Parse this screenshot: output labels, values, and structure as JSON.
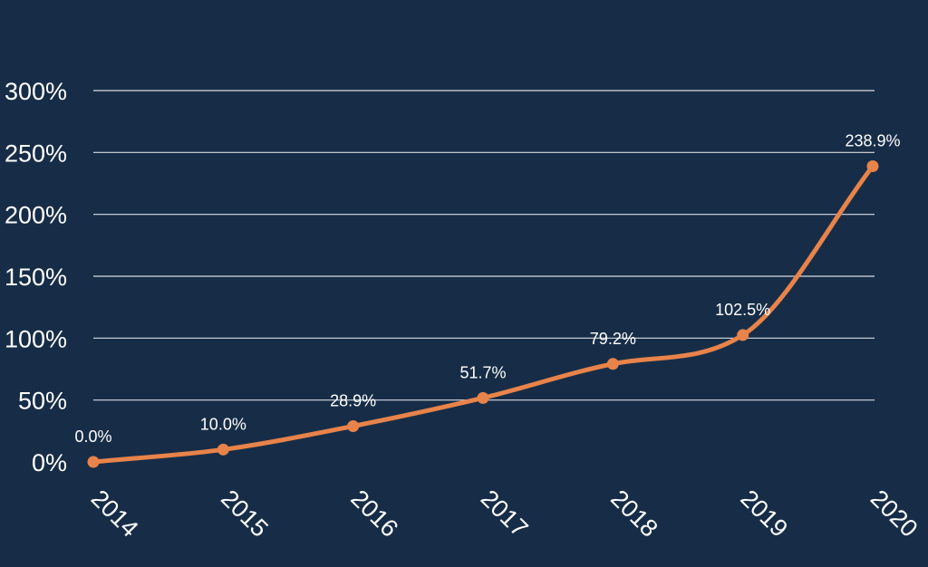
{
  "colors": {
    "background": "#172d47",
    "series": "#e8834a",
    "gridline": "#d8dde3",
    "text": "#ffffff"
  },
  "chart_data": {
    "type": "line",
    "title": "",
    "xlabel": "",
    "ylabel": "",
    "categories": [
      "2014",
      "2015",
      "2016",
      "2017",
      "2018",
      "2019",
      "2020"
    ],
    "series": [
      {
        "values": [
          0.0,
          10.0,
          28.9,
          51.7,
          79.2,
          102.5,
          238.9
        ],
        "labels": [
          "0.0%",
          "10.0%",
          "28.9%",
          "51.7%",
          "79.2%",
          "102.5%",
          "238.9%"
        ]
      }
    ],
    "yticks": [
      0,
      50,
      100,
      150,
      200,
      250,
      300
    ],
    "ytick_labels": [
      "0%",
      "50%",
      "100%",
      "150%",
      "200%",
      "250%",
      "300%"
    ],
    "ylim": [
      0,
      300
    ],
    "grid": true,
    "smooth": true,
    "legend": "none"
  }
}
